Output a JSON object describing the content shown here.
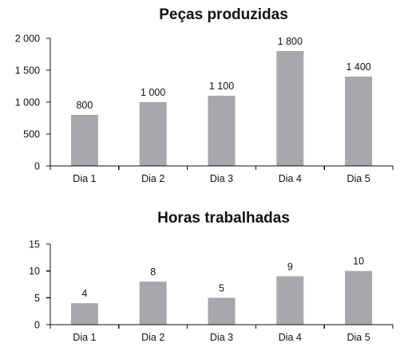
{
  "chart_data": [
    {
      "type": "bar",
      "title": "Peças produzidas",
      "categories": [
        "Dia 1",
        "Dia 2",
        "Dia 3",
        "Dia 4",
        "Dia 5"
      ],
      "values": [
        800,
        1000,
        1100,
        1800,
        1400
      ],
      "value_labels": [
        "800",
        "1 000",
        "1 100",
        "1 800",
        "1 400"
      ],
      "yticks": [
        0,
        500,
        1000,
        1500,
        2000
      ],
      "ytick_labels": [
        "0",
        "500",
        "1 000",
        "1 500",
        "2 000"
      ],
      "ylim": [
        0,
        2000
      ],
      "xlabel": "",
      "ylabel": "",
      "grid": false,
      "bar_color": "#a7a8ab"
    },
    {
      "type": "bar",
      "title": "Horas trabalhadas",
      "categories": [
        "Dia 1",
        "Dia 2",
        "Dia 3",
        "Dia 4",
        "Dia 5"
      ],
      "values": [
        4,
        8,
        5,
        9,
        10
      ],
      "value_labels": [
        "4",
        "8",
        "5",
        "9",
        "10"
      ],
      "yticks": [
        0,
        5,
        10,
        15
      ],
      "ytick_labels": [
        "0",
        "5",
        "10",
        "15"
      ],
      "ylim": [
        0,
        15
      ],
      "xlabel": "",
      "ylabel": "",
      "grid": false,
      "bar_color": "#a7a8ab"
    }
  ]
}
